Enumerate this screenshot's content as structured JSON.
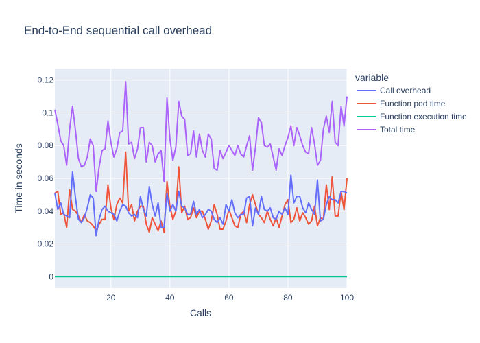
{
  "chart_data": {
    "type": "line",
    "title": "End-to-End sequential call overhead",
    "xlabel": "Calls",
    "ylabel": "Time in seconds",
    "legend_title": "variable",
    "legend_position": "right",
    "xlim": [
      1,
      100
    ],
    "ylim": [
      -0.007,
      0.127
    ],
    "x_ticks": [
      20,
      40,
      60,
      80,
      100
    ],
    "y_ticks": [
      0,
      0.02,
      0.04,
      0.06,
      0.08,
      0.1,
      0.12
    ],
    "x_tick_labels": [
      "20",
      "40",
      "60",
      "80",
      "100"
    ],
    "y_tick_labels": [
      "0",
      "0.02",
      "0.04",
      "0.06",
      "0.08",
      "0.1",
      "0.12"
    ],
    "background": "#e5ecf6",
    "grid": true,
    "x": [
      1,
      2,
      3,
      4,
      5,
      6,
      7,
      8,
      9,
      10,
      11,
      12,
      13,
      14,
      15,
      16,
      17,
      18,
      19,
      20,
      21,
      22,
      23,
      24,
      25,
      26,
      27,
      28,
      29,
      30,
      31,
      32,
      33,
      34,
      35,
      36,
      37,
      38,
      39,
      40,
      41,
      42,
      43,
      44,
      45,
      46,
      47,
      48,
      49,
      50,
      51,
      52,
      53,
      54,
      55,
      56,
      57,
      58,
      59,
      60,
      61,
      62,
      63,
      64,
      65,
      66,
      67,
      68,
      69,
      70,
      71,
      72,
      73,
      74,
      75,
      76,
      77,
      78,
      79,
      80,
      81,
      82,
      83,
      84,
      85,
      86,
      87,
      88,
      89,
      90,
      91,
      92,
      93,
      94,
      95,
      96,
      97,
      98,
      99,
      100
    ],
    "series": [
      {
        "name": "Call overhead",
        "color": "#636efa",
        "values": [
          0.051,
          0.041,
          0.045,
          0.038,
          0.037,
          0.036,
          0.064,
          0.048,
          0.035,
          0.033,
          0.036,
          0.042,
          0.05,
          0.048,
          0.025,
          0.035,
          0.041,
          0.043,
          0.04,
          0.039,
          0.038,
          0.034,
          0.04,
          0.044,
          0.043,
          0.039,
          0.037,
          0.038,
          0.036,
          0.049,
          0.041,
          0.037,
          0.055,
          0.044,
          0.037,
          0.045,
          0.03,
          0.03,
          0.051,
          0.04,
          0.044,
          0.04,
          0.052,
          0.043,
          0.042,
          0.038,
          0.038,
          0.046,
          0.038,
          0.041,
          0.036,
          0.038,
          0.041,
          0.04,
          0.035,
          0.033,
          0.036,
          0.032,
          0.044,
          0.04,
          0.047,
          0.039,
          0.036,
          0.038,
          0.038,
          0.048,
          0.049,
          0.031,
          0.042,
          0.038,
          0.049,
          0.041,
          0.04,
          0.042,
          0.036,
          0.035,
          0.04,
          0.038,
          0.042,
          0.038,
          0.062,
          0.045,
          0.049,
          0.049,
          0.042,
          0.039,
          0.045,
          0.041,
          0.038,
          0.059,
          0.034,
          0.035,
          0.044,
          0.049,
          0.047,
          0.047,
          0.045,
          0.052,
          0.052,
          0.051
        ]
      },
      {
        "name": "Function pod time",
        "color": "#ef553b",
        "values": [
          0.051,
          0.052,
          0.038,
          0.039,
          0.03,
          0.053,
          0.041,
          0.04,
          0.037,
          0.033,
          0.038,
          0.034,
          0.033,
          0.031,
          0.028,
          0.032,
          0.035,
          0.035,
          0.056,
          0.042,
          0.035,
          0.044,
          0.048,
          0.045,
          0.076,
          0.04,
          0.044,
          0.034,
          0.04,
          0.043,
          0.043,
          0.032,
          0.027,
          0.036,
          0.032,
          0.028,
          0.034,
          0.027,
          0.058,
          0.043,
          0.035,
          0.04,
          0.067,
          0.039,
          0.043,
          0.035,
          0.036,
          0.042,
          0.036,
          0.04,
          0.04,
          0.035,
          0.029,
          0.034,
          0.044,
          0.038,
          0.029,
          0.029,
          0.034,
          0.041,
          0.036,
          0.031,
          0.03,
          0.038,
          0.04,
          0.033,
          0.044,
          0.05,
          0.044,
          0.038,
          0.036,
          0.033,
          0.04,
          0.035,
          0.031,
          0.036,
          0.03,
          0.037,
          0.044,
          0.047,
          0.033,
          0.035,
          0.042,
          0.034,
          0.039,
          0.036,
          0.032,
          0.034,
          0.043,
          0.031,
          0.036,
          0.035,
          0.056,
          0.041,
          0.061,
          0.037,
          0.037,
          0.052,
          0.041,
          0.06
        ]
      },
      {
        "name": "Function execution time",
        "color": "#00cc96",
        "values": [
          0,
          0,
          0,
          0,
          0,
          0,
          0,
          0,
          0,
          0,
          0,
          0,
          0,
          0,
          0,
          0,
          0,
          0,
          0,
          0,
          0,
          0,
          0,
          0,
          0,
          0,
          0,
          0,
          0,
          0,
          0,
          0,
          0,
          0,
          0,
          0,
          0,
          0,
          0,
          0,
          0,
          0,
          0,
          0,
          0,
          0,
          0,
          0,
          0,
          0,
          0,
          0,
          0,
          0,
          0,
          0,
          0,
          0,
          0,
          0,
          0,
          0,
          0,
          0,
          0,
          0,
          0,
          0,
          0,
          0,
          0,
          0,
          0,
          0,
          0,
          0,
          0,
          0,
          0,
          0,
          0,
          0,
          0,
          0,
          0,
          0,
          0,
          0,
          0,
          0,
          0,
          0,
          0,
          0,
          0,
          0,
          0,
          0,
          0,
          0
        ]
      },
      {
        "name": "Total time",
        "color": "#ab63fa",
        "values": [
          0.102,
          0.093,
          0.083,
          0.08,
          0.068,
          0.09,
          0.104,
          0.089,
          0.072,
          0.067,
          0.068,
          0.073,
          0.084,
          0.08,
          0.052,
          0.067,
          0.077,
          0.078,
          0.095,
          0.082,
          0.073,
          0.078,
          0.088,
          0.089,
          0.119,
          0.081,
          0.082,
          0.072,
          0.078,
          0.091,
          0.091,
          0.07,
          0.082,
          0.08,
          0.07,
          0.075,
          0.077,
          0.058,
          0.109,
          0.084,
          0.071,
          0.079,
          0.107,
          0.098,
          0.096,
          0.074,
          0.075,
          0.089,
          0.073,
          0.087,
          0.077,
          0.073,
          0.087,
          0.084,
          0.066,
          0.065,
          0.077,
          0.072,
          0.076,
          0.08,
          0.077,
          0.074,
          0.08,
          0.075,
          0.073,
          0.08,
          0.086,
          0.065,
          0.079,
          0.097,
          0.094,
          0.08,
          0.079,
          0.081,
          0.073,
          0.065,
          0.078,
          0.074,
          0.08,
          0.085,
          0.092,
          0.08,
          0.091,
          0.086,
          0.08,
          0.076,
          0.075,
          0.091,
          0.081,
          0.068,
          0.071,
          0.09,
          0.098,
          0.088,
          0.107,
          0.082,
          0.08,
          0.104,
          0.092,
          0.11
        ]
      }
    ]
  }
}
